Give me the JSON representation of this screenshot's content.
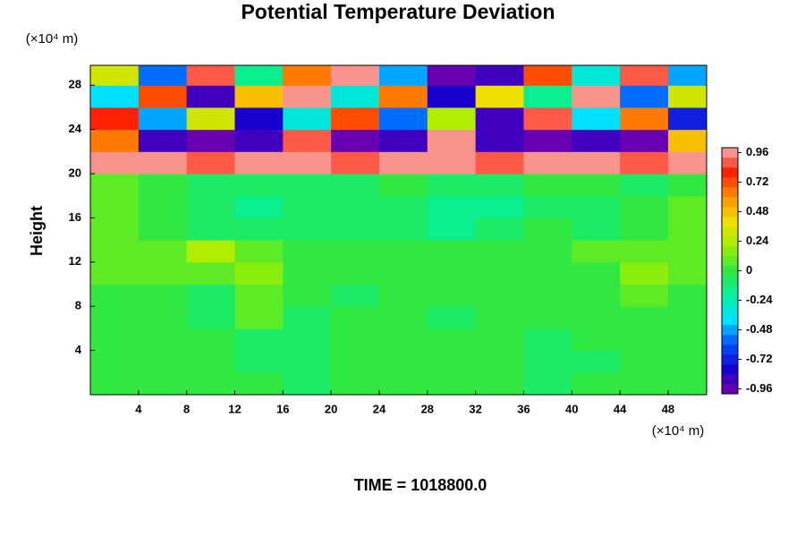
{
  "chart_data": {
    "type": "heatmap",
    "title": "Potential Temperature Deviation",
    "ylabel": "Height",
    "y_unit": "(×10⁴ m)",
    "x_unit": "(×10⁴ m)",
    "annotation": "TIME = 1018800.0",
    "x": [
      2,
      6,
      10,
      14,
      18,
      22,
      26,
      30,
      34,
      38,
      42,
      46,
      50
    ],
    "y": [
      1,
      3,
      5,
      7,
      9,
      11,
      13,
      15,
      17,
      19,
      21,
      23,
      25,
      27,
      29
    ],
    "z": [
      [
        0.02,
        0,
        0,
        -0.02,
        -0.05,
        0,
        0,
        0,
        0,
        -0.05,
        0,
        0,
        0.02
      ],
      [
        0,
        0,
        0,
        -0.05,
        -0.1,
        0,
        0,
        0,
        -0.02,
        -0.1,
        -0.05,
        0,
        0
      ],
      [
        0,
        -0.02,
        0,
        -0.05,
        -0.08,
        -0.02,
        0,
        0,
        0,
        -0.05,
        0,
        0,
        0
      ],
      [
        0,
        0,
        -0.05,
        0.05,
        -0.05,
        0,
        0,
        -0.05,
        0,
        0,
        0,
        -0.02,
        0
      ],
      [
        0,
        0,
        -0.1,
        0.1,
        0,
        -0.05,
        0,
        0,
        0,
        0,
        0,
        0.05,
        0
      ],
      [
        0.05,
        0.05,
        0.1,
        0.15,
        0,
        0,
        0,
        0,
        0,
        0,
        0,
        0.15,
        0.05
      ],
      [
        0.1,
        0.1,
        0.2,
        0.1,
        0,
        0.02,
        0,
        0,
        0,
        0,
        0.05,
        0.1,
        0.1
      ],
      [
        0.05,
        0,
        -0.05,
        -0.1,
        -0.05,
        -0.1,
        -0.05,
        -0.15,
        -0.05,
        0,
        -0.05,
        0,
        0.05
      ],
      [
        0.1,
        0,
        -0.1,
        -0.2,
        -0.1,
        -0.05,
        -0.1,
        -0.2,
        -0.15,
        -0.05,
        -0.1,
        0,
        0.05
      ],
      [
        0.05,
        0,
        -0.05,
        -0.05,
        -0.1,
        -0.05,
        0,
        -0.05,
        -0.05,
        0,
        0,
        -0.05,
        0
      ],
      [
        0.95,
        0.95,
        0.9,
        0.95,
        0.95,
        0.9,
        0.95,
        0.95,
        0.9,
        0.95,
        0.95,
        0.9,
        0.95
      ],
      [
        0.6,
        -0.9,
        -0.95,
        -0.9,
        0.9,
        -0.95,
        -0.9,
        0.95,
        -0.9,
        -0.95,
        -0.9,
        -0.95,
        0.5
      ],
      [
        0.8,
        -0.5,
        0.3,
        -0.8,
        -0.3,
        0.7,
        -0.6,
        0.2,
        -0.9,
        0.9,
        -0.4,
        0.6,
        -0.7
      ],
      [
        -0.4,
        0.7,
        -0.9,
        0.5,
        0.95,
        -0.3,
        0.6,
        -0.8,
        0.4,
        -0.2,
        0.95,
        -0.6,
        0.3
      ],
      [
        0.3,
        -0.6,
        0.9,
        -0.2,
        0.6,
        0.95,
        -0.5,
        -0.95,
        -0.9,
        0.7,
        -0.3,
        0.9,
        -0.5
      ]
    ],
    "xlim": [
      0,
      51.2
    ],
    "ylim": [
      0,
      29.8
    ],
    "xticks": [
      4,
      8,
      12,
      16,
      20,
      24,
      28,
      32,
      36,
      40,
      44,
      48
    ],
    "yticks": [
      4,
      8,
      12,
      16,
      20,
      24,
      28
    ],
    "clim": [
      -1,
      1
    ],
    "cticks": [
      0.96,
      0.72,
      0.48,
      0.24,
      0,
      -0.24,
      -0.48,
      -0.72,
      -0.96
    ],
    "levels": 25,
    "colormap": [
      "#7a00a8",
      "#1a00d0",
      "#0050ff",
      "#00e0ff",
      "#00f0a0",
      "#30e840",
      "#a0f000",
      "#f0e000",
      "#ff9000",
      "#ff2000",
      "#f8b0b0"
    ]
  }
}
